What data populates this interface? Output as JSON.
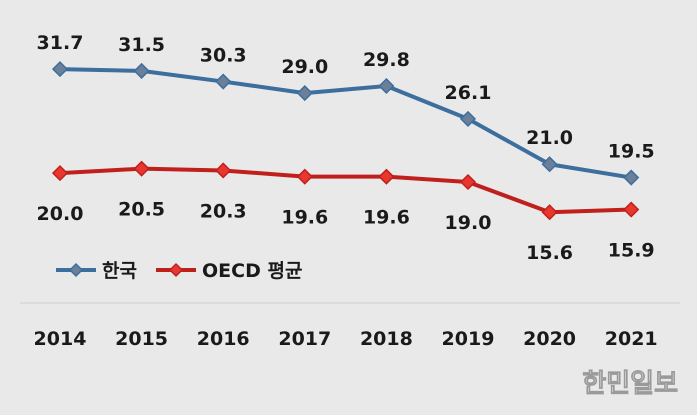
{
  "chart_data": {
    "type": "line",
    "categories": [
      "2014",
      "2015",
      "2016",
      "2017",
      "2018",
      "2019",
      "2020",
      "2021"
    ],
    "series": [
      {
        "name": "한국",
        "values": [
          31.7,
          31.5,
          30.3,
          29.0,
          29.8,
          26.1,
          21.0,
          19.5
        ],
        "color": "#3c6e9e",
        "marker_color": "#6b7f99",
        "label_position": "above"
      },
      {
        "name": "OECD 평균",
        "values": [
          20.0,
          20.5,
          20.3,
          19.6,
          19.6,
          19.0,
          15.6,
          15.9
        ],
        "color": "#c0201c",
        "marker_color": "#e8372f",
        "label_position": "below"
      }
    ],
    "ylim": [
      14.5,
      32.5
    ],
    "legend": "bottom-left",
    "grid": false
  },
  "watermark": "한민일보",
  "colors": {
    "background": "#e9e9e9",
    "axis_line": "#d0d0d0"
  }
}
